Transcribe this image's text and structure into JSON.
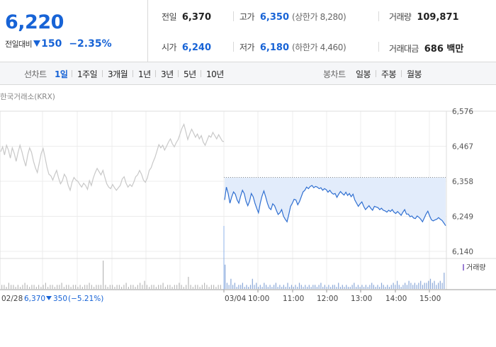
{
  "summary": {
    "price": "6,220",
    "change_label": "전일대비",
    "change_value": "150",
    "change_rate": "−2.35%",
    "cells": {
      "prev_close": {
        "label": "전일",
        "value": "6,370"
      },
      "high": {
        "label": "고가",
        "value": "6,350",
        "sub": "(상한가 8,280)"
      },
      "volume": {
        "label": "거래량",
        "value": "109,871"
      },
      "open": {
        "label": "시가",
        "value": "6,240"
      },
      "low": {
        "label": "저가",
        "value": "6,180",
        "sub": "(하한가 4,460)"
      },
      "amount": {
        "label": "거래대금",
        "value": "686 백만"
      }
    }
  },
  "period_bar": {
    "line_label": "선차트",
    "line_items": [
      "1일",
      "1주일",
      "3개월",
      "1년",
      "3년",
      "5년",
      "10년"
    ],
    "active": "1일",
    "candle_label": "봉차트",
    "candle_items": [
      "일봉",
      "주봉",
      "월봉"
    ]
  },
  "colors": {
    "accent": "#1763d6",
    "prev_line": "#c8c8c8",
    "today_line": "#2f6fd1",
    "fill": "#e2ecfb",
    "volume_bar": "#aaaaaa"
  },
  "chart_data": {
    "type": "line",
    "source_label": "한국거래소(KRX)",
    "y_ticks": [
      6576,
      6467,
      6358,
      6249,
      6140
    ],
    "y_tick_labels": [
      "6,576",
      "6,467",
      "6,358",
      "6,249",
      "6,140"
    ],
    "ylim": [
      6140,
      6576
    ],
    "prev_close": 6370,
    "x_ticks": [
      "03/04",
      "10:00",
      "11:00",
      "12:00",
      "13:00",
      "14:00",
      "15:00"
    ],
    "volume_legend": "거래량",
    "footer": {
      "date": "02/28",
      "price": "6,370",
      "change": "350",
      "rate": "(−5.21%)"
    },
    "series": [
      {
        "values": [
          6450,
          6465,
          6440,
          6470,
          6455,
          6430,
          6462,
          6445,
          6420,
          6448,
          6470,
          6450,
          6425,
          6405,
          6440,
          6462,
          6448,
          6420,
          6400,
          6385,
          6415,
          6445,
          6460,
          6432,
          6402,
          6380,
          6375,
          6362,
          6378,
          6392,
          6368,
          6350,
          6360,
          6380,
          6370,
          6345,
          6330,
          6355,
          6370,
          6362,
          6358,
          6348,
          6340,
          6352,
          6345,
          6333,
          6360,
          6345,
          6368,
          6385,
          6398,
          6388,
          6378,
          6392,
          6370,
          6350,
          6340,
          6335,
          6348,
          6338,
          6330,
          6338,
          6345,
          6365,
          6372,
          6352,
          6340,
          6348,
          6342,
          6355,
          6372,
          6378,
          6392,
          6380,
          6362,
          6355,
          6368,
          6392,
          6400,
          6418,
          6432,
          6452,
          6472,
          6462,
          6470,
          6455,
          6467,
          6480,
          6490,
          6475,
          6465,
          6478,
          6488,
          6505,
          6523,
          6535,
          6512,
          6488,
          6505,
          6520,
          6508,
          6495,
          6505,
          6490,
          6500,
          6480,
          6470,
          6485,
          6500,
          6495,
          6510,
          6500,
          6490,
          6503,
          6492,
          6482
        ]
      },
      {
        "values": [
          6300,
          6340,
          6320,
          6290,
          6310,
          6325,
          6318,
          6300,
          6290,
          6312,
          6330,
          6320,
          6296,
          6282,
          6296,
          6320,
          6310,
          6290,
          6274,
          6260,
          6290,
          6312,
          6328,
          6310,
          6290,
          6275,
          6270,
          6288,
          6282,
          6268,
          6255,
          6260,
          6270,
          6250,
          6240,
          6232,
          6255,
          6280,
          6290,
          6302,
          6300,
          6285,
          6295,
          6310,
          6325,
          6330,
          6340,
          6335,
          6342,
          6345,
          6338,
          6342,
          6340,
          6335,
          6338,
          6330,
          6335,
          6332,
          6324,
          6330,
          6322,
          6318,
          6320,
          6308,
          6318,
          6326,
          6320,
          6315,
          6324,
          6314,
          6320,
          6310,
          6318,
          6300,
          6290,
          6280,
          6288,
          6294,
          6280,
          6270,
          6276,
          6282,
          6274,
          6268,
          6280,
          6278,
          6276,
          6270,
          6274,
          6268,
          6266,
          6262,
          6268,
          6264,
          6270,
          6262,
          6258,
          6264,
          6258,
          6252,
          6262,
          6270,
          6256,
          6256,
          6248,
          6250,
          6244,
          6242,
          6250,
          6246,
          6240,
          6232,
          6244,
          6256,
          6265,
          6250,
          6238,
          6235,
          6238,
          6240,
          6245,
          6240,
          6236,
          6228,
          6220
        ]
      }
    ],
    "volume": {
      "prev": [
        2,
        2,
        1,
        3,
        2,
        2,
        1,
        2,
        1,
        2,
        3,
        2,
        1,
        2,
        2,
        1,
        2,
        1,
        2,
        3,
        1,
        2,
        2,
        1,
        2,
        2,
        3,
        1,
        2,
        2,
        1,
        2,
        2,
        1,
        2,
        1,
        2,
        2,
        3,
        2,
        1,
        2,
        2,
        2,
        14,
        2,
        1,
        2,
        2,
        1,
        2,
        2,
        1,
        2,
        3,
        1,
        2,
        2,
        1,
        2,
        3,
        2,
        4,
        2,
        1,
        2,
        2,
        1,
        2,
        2,
        3,
        1,
        2,
        2,
        1,
        2,
        2,
        3,
        2,
        1,
        2,
        6,
        2,
        1,
        2,
        2,
        1,
        2,
        3,
        2,
        1,
        2,
        2,
        1,
        2,
        2
      ],
      "today": [
        12,
        3,
        2,
        5,
        2,
        3,
        1,
        2,
        2,
        3,
        1,
        2,
        1,
        2,
        5,
        2,
        3,
        1,
        2,
        1,
        3,
        2,
        1,
        2,
        1,
        2,
        3,
        1,
        2,
        1,
        2,
        1,
        3,
        1,
        2,
        1,
        2,
        1,
        3,
        2,
        1,
        2,
        1,
        2,
        1,
        2,
        2,
        1,
        2,
        3,
        1,
        2,
        1,
        2,
        1,
        2,
        2,
        1,
        3,
        1,
        2,
        1,
        2,
        1,
        1,
        2,
        3,
        1,
        2,
        1,
        2,
        1,
        2,
        1,
        2,
        3,
        2,
        1,
        2,
        1,
        3,
        2,
        1,
        2,
        1,
        2,
        3,
        2,
        4,
        2,
        1,
        2,
        3,
        2,
        4,
        3,
        2,
        3,
        2,
        3,
        4,
        2,
        3,
        3,
        4,
        5,
        3,
        4,
        2,
        3,
        4,
        3,
        8
      ]
    }
  }
}
